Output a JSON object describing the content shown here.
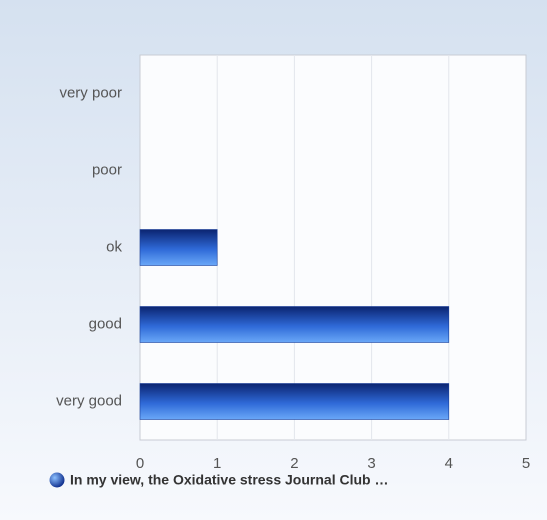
{
  "chart_data": {
    "type": "bar",
    "orientation": "horizontal",
    "categories": [
      "very poor",
      "poor",
      "ok",
      "good",
      "very good"
    ],
    "series": [
      {
        "name": "In my view, the Oxidative stress Journal Club …",
        "color": "#2f6ad8",
        "values": [
          0,
          0,
          1,
          4,
          4
        ]
      }
    ],
    "xlim": [
      0,
      5
    ],
    "xticks": [
      0,
      1,
      2,
      3,
      4,
      5
    ],
    "grid": true,
    "legend": "bottom"
  }
}
